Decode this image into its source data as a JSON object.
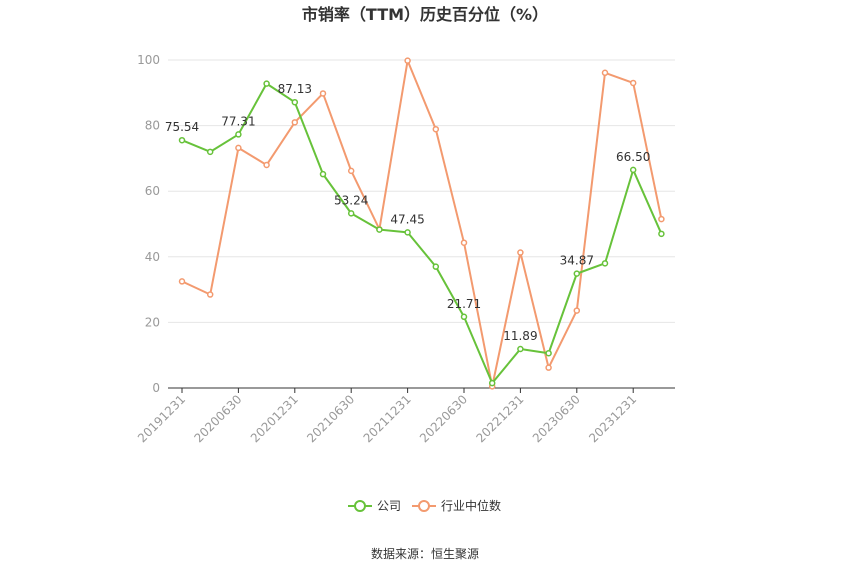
{
  "chart_data": {
    "type": "line",
    "title": "市销率（TTM）历史百分位（%）",
    "xlabel": "",
    "ylabel": "",
    "ylim": [
      0,
      100
    ],
    "yticks": [
      0,
      20,
      40,
      60,
      80,
      100
    ],
    "grid": true,
    "legend": "bottom",
    "x_points": 18,
    "x_tick_labels": [
      {
        "index": 0,
        "label": "20191231"
      },
      {
        "index": 2,
        "label": "20200630"
      },
      {
        "index": 4,
        "label": "20201231"
      },
      {
        "index": 6,
        "label": "20210630"
      },
      {
        "index": 8,
        "label": "20211231"
      },
      {
        "index": 10,
        "label": "20220630"
      },
      {
        "index": 12,
        "label": "20221231"
      },
      {
        "index": 14,
        "label": "20230630"
      },
      {
        "index": 16,
        "label": "20231231"
      }
    ],
    "series": [
      {
        "name": "公司",
        "color": "#67c23a",
        "values": [
          75.54,
          72.0,
          77.31,
          92.8,
          87.13,
          65.2,
          53.24,
          48.3,
          47.45,
          37.0,
          21.71,
          1.5,
          11.89,
          10.6,
          34.87,
          38.0,
          66.5,
          47.0
        ],
        "labels": [
          {
            "index": 0,
            "text": "75.54"
          },
          {
            "index": 2,
            "text": "77.31"
          },
          {
            "index": 4,
            "text": "87.13"
          },
          {
            "index": 6,
            "text": "53.24"
          },
          {
            "index": 8,
            "text": "47.45"
          },
          {
            "index": 10,
            "text": "21.71"
          },
          {
            "index": 12,
            "text": "11.89"
          },
          {
            "index": 14,
            "text": "34.87"
          },
          {
            "index": 16,
            "text": "66.50"
          }
        ]
      },
      {
        "name": "行业中位数",
        "color": "#f39a6f",
        "values": [
          32.5,
          28.5,
          73.2,
          68.0,
          81.0,
          89.8,
          66.2,
          48.4,
          99.8,
          78.9,
          44.3,
          0.5,
          41.3,
          6.2,
          23.6,
          96.1,
          93.0,
          51.5
        ]
      }
    ]
  },
  "source_text": "数据来源：恒生聚源"
}
